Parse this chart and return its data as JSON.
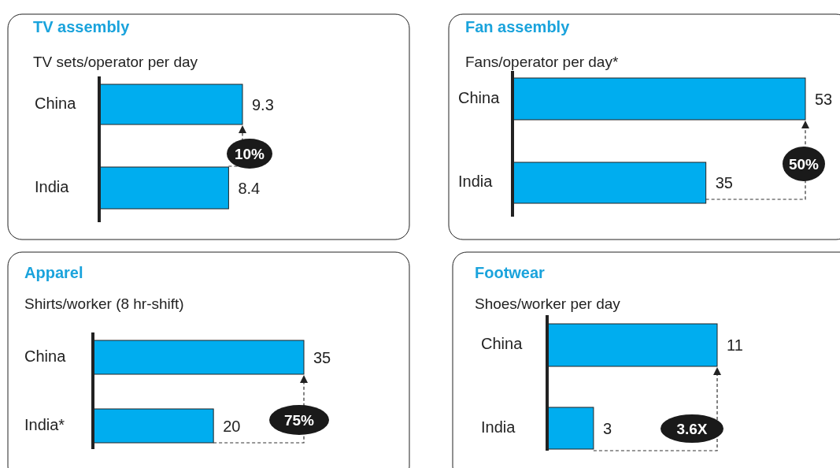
{
  "chart_data": [
    {
      "type": "bar",
      "orientation": "horizontal",
      "title": "TV assembly",
      "subtitle": "TV sets/operator per day",
      "categories": [
        "China",
        "India"
      ],
      "values": [
        9.3,
        8.4
      ],
      "color": "#00adef",
      "xlim": [
        0,
        9.3
      ],
      "data_labels": true,
      "annotations": [
        "10%"
      ]
    },
    {
      "type": "bar",
      "orientation": "horizontal",
      "title": "Fan assembly",
      "subtitle": "Fans/operator per day*",
      "categories": [
        "China",
        "India"
      ],
      "values": [
        53,
        35
      ],
      "color": "#00adef",
      "xlim": [
        0,
        53
      ],
      "data_labels": true,
      "annotations": [
        "50%"
      ]
    },
    {
      "type": "bar",
      "orientation": "horizontal",
      "title": "Apparel",
      "subtitle": "Shirts/worker (8 hr-shift)",
      "categories": [
        "China",
        "India*"
      ],
      "values": [
        35,
        20
      ],
      "color": "#00adef",
      "xlim": [
        0,
        35
      ],
      "data_labels": true,
      "annotations": [
        "75%"
      ]
    },
    {
      "type": "bar",
      "orientation": "horizontal",
      "title": "Footwear",
      "subtitle": "Shoes/worker per day",
      "categories": [
        "China",
        "India"
      ],
      "values": [
        11,
        3
      ],
      "color": "#00adef",
      "xlim": [
        0,
        11
      ],
      "data_labels": true,
      "annotations": [
        "3.6X"
      ]
    }
  ]
}
